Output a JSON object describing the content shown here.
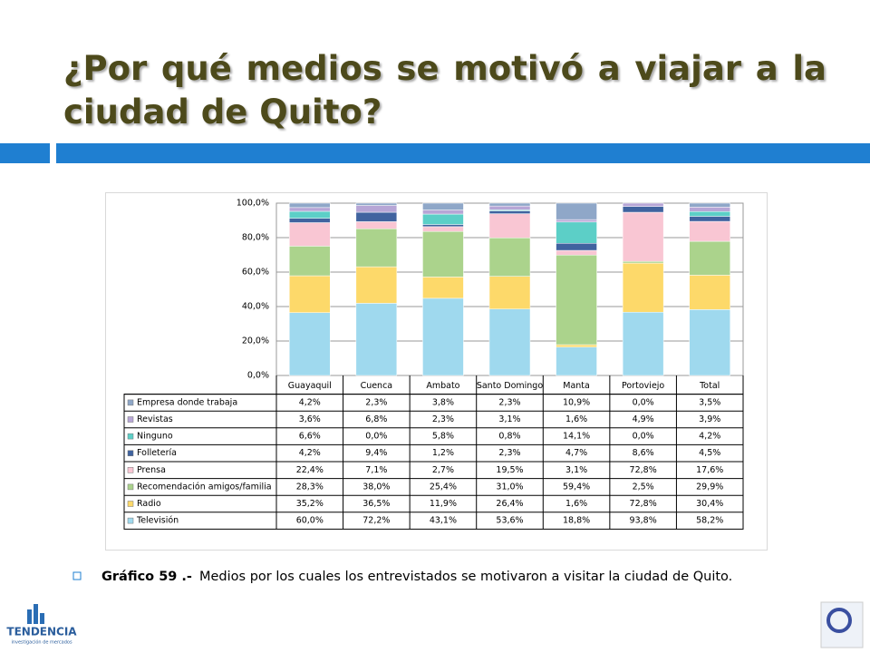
{
  "slide": {
    "title": "¿Por qué medios se motivó a viajar a la ciudad de Quito?",
    "caption_label": "Gráfico 59 .-",
    "caption": "Medios por los cuales los entrevistados se motivaron a visitar la ciudad de Quito.",
    "logo": "TENDENCIA",
    "logo_sub": "investigación de mercados"
  },
  "chart_data": {
    "type": "bar",
    "stack": "percent",
    "categories": [
      "Guayaquil",
      "Cuenca",
      "Ambato",
      "Santo Domingo",
      "Manta",
      "Portoviejo",
      "Total"
    ],
    "ylim": [
      0,
      100
    ],
    "yticks": [
      {
        "value": 0,
        "label": "0,0%"
      },
      {
        "value": 20,
        "label": "20,0%"
      },
      {
        "value": 40,
        "label": "40,0%"
      },
      {
        "value": 60,
        "label": "60,0%"
      },
      {
        "value": 80,
        "label": "80,0%"
      },
      {
        "value": 100,
        "label": "100,0%"
      }
    ],
    "grid": true,
    "series": [
      {
        "name": "Televisión",
        "color": "#9fd9ee",
        "values": [
          60.0,
          72.2,
          43.1,
          53.6,
          18.8,
          93.8,
          58.2
        ],
        "value_labels": [
          "60,0%",
          "72,2%",
          "43,1%",
          "53,6%",
          "18,8%",
          "93,8%",
          "58,2%"
        ]
      },
      {
        "name": "Radio",
        "color": "#fdd96a",
        "values": [
          35.2,
          36.5,
          11.9,
          26.4,
          1.6,
          72.8,
          30.4
        ],
        "value_labels": [
          "35,2%",
          "36,5%",
          "11,9%",
          "26,4%",
          "1,6%",
          "72,8%",
          "30,4%"
        ]
      },
      {
        "name": "Recomendación amigos/familia",
        "color": "#abd38c",
        "values": [
          28.3,
          38.0,
          25.4,
          31.0,
          59.4,
          2.5,
          29.9
        ],
        "value_labels": [
          "28,3%",
          "38,0%",
          "25,4%",
          "31,0%",
          "59,4%",
          "2,5%",
          "29,9%"
        ]
      },
      {
        "name": "Prensa",
        "color": "#f9c6d3",
        "values": [
          22.4,
          7.1,
          2.7,
          19.5,
          3.1,
          72.8,
          17.6
        ],
        "value_labels": [
          "22,4%",
          "7,1%",
          "2,7%",
          "19,5%",
          "3,1%",
          "72,8%",
          "17,6%"
        ]
      },
      {
        "name": "Folletería",
        "color": "#40639f",
        "values": [
          4.2,
          9.4,
          1.2,
          2.3,
          4.7,
          8.6,
          4.5
        ],
        "value_labels": [
          "4,2%",
          "9,4%",
          "1,2%",
          "2,3%",
          "4,7%",
          "8,6%",
          "4,5%"
        ]
      },
      {
        "name": "Ninguno",
        "color": "#5ccfc7",
        "values": [
          6.6,
          0.0,
          5.8,
          0.8,
          14.1,
          0.0,
          4.2
        ],
        "value_labels": [
          "6,6%",
          "0,0%",
          "5,8%",
          "0,8%",
          "14,1%",
          "0,0%",
          "4,2%"
        ]
      },
      {
        "name": "Revistas",
        "color": "#b7a6d6",
        "values": [
          3.6,
          6.8,
          2.3,
          3.1,
          1.6,
          4.9,
          3.9
        ],
        "value_labels": [
          "3,6%",
          "6,8%",
          "2,3%",
          "3,1%",
          "1,6%",
          "4,9%",
          "3,9%"
        ]
      },
      {
        "name": "Empresa donde trabaja",
        "color": "#8fa7c8",
        "values": [
          4.2,
          2.3,
          3.8,
          2.3,
          10.9,
          0.0,
          3.5
        ],
        "value_labels": [
          "4,2%",
          "2,3%",
          "3,8%",
          "2,3%",
          "10,9%",
          "0,0%",
          "3,5%"
        ]
      }
    ]
  }
}
